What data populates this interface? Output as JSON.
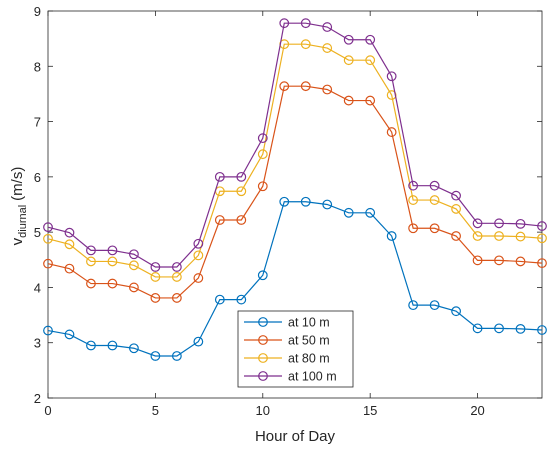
{
  "chart_data": {
    "type": "line",
    "xlabel": "Hour of Day",
    "ylabel_main": "v",
    "ylabel_sub": "diurnal",
    "ylabel_unit": "(m/s)",
    "xlim": [
      0,
      23
    ],
    "ylim": [
      2,
      9
    ],
    "xticks": [
      0,
      5,
      10,
      15,
      20
    ],
    "yticks": [
      2,
      3,
      4,
      5,
      6,
      7,
      8,
      9
    ],
    "grid": false,
    "legend_position": "bottom-center",
    "x": [
      0,
      1,
      2,
      3,
      4,
      5,
      6,
      7,
      8,
      9,
      10,
      11,
      12,
      13,
      14,
      15,
      16,
      17,
      18,
      19,
      20,
      21,
      22,
      23
    ],
    "series": [
      {
        "name": "at 10 m",
        "color": "#0072BD",
        "values": [
          3.22,
          3.15,
          2.95,
          2.95,
          2.9,
          2.76,
          2.76,
          3.02,
          3.78,
          3.78,
          4.22,
          5.55,
          5.55,
          5.5,
          5.35,
          5.35,
          4.93,
          3.68,
          3.68,
          3.57,
          3.26,
          3.26,
          3.25,
          3.23
        ]
      },
      {
        "name": "at 50 m",
        "color": "#D95319",
        "values": [
          4.43,
          4.34,
          4.07,
          4.07,
          4.0,
          3.81,
          3.81,
          4.17,
          5.22,
          5.22,
          5.83,
          7.64,
          7.64,
          7.58,
          7.38,
          7.38,
          6.81,
          5.07,
          5.07,
          4.93,
          4.49,
          4.49,
          4.47,
          4.44
        ]
      },
      {
        "name": "at 80 m",
        "color": "#EDB120",
        "values": [
          4.88,
          4.78,
          4.47,
          4.47,
          4.4,
          4.19,
          4.19,
          4.58,
          5.74,
          5.74,
          6.41,
          8.4,
          8.4,
          8.33,
          8.11,
          8.11,
          7.48,
          5.58,
          5.58,
          5.42,
          4.93,
          4.93,
          4.92,
          4.89
        ]
      },
      {
        "name": "at 100 m",
        "color": "#7E2F8E",
        "values": [
          5.09,
          4.99,
          4.67,
          4.67,
          4.6,
          4.37,
          4.37,
          4.79,
          6.0,
          6.0,
          6.7,
          8.78,
          8.78,
          8.71,
          8.48,
          8.48,
          7.82,
          5.84,
          5.84,
          5.66,
          5.16,
          5.16,
          5.15,
          5.11
        ]
      }
    ]
  }
}
